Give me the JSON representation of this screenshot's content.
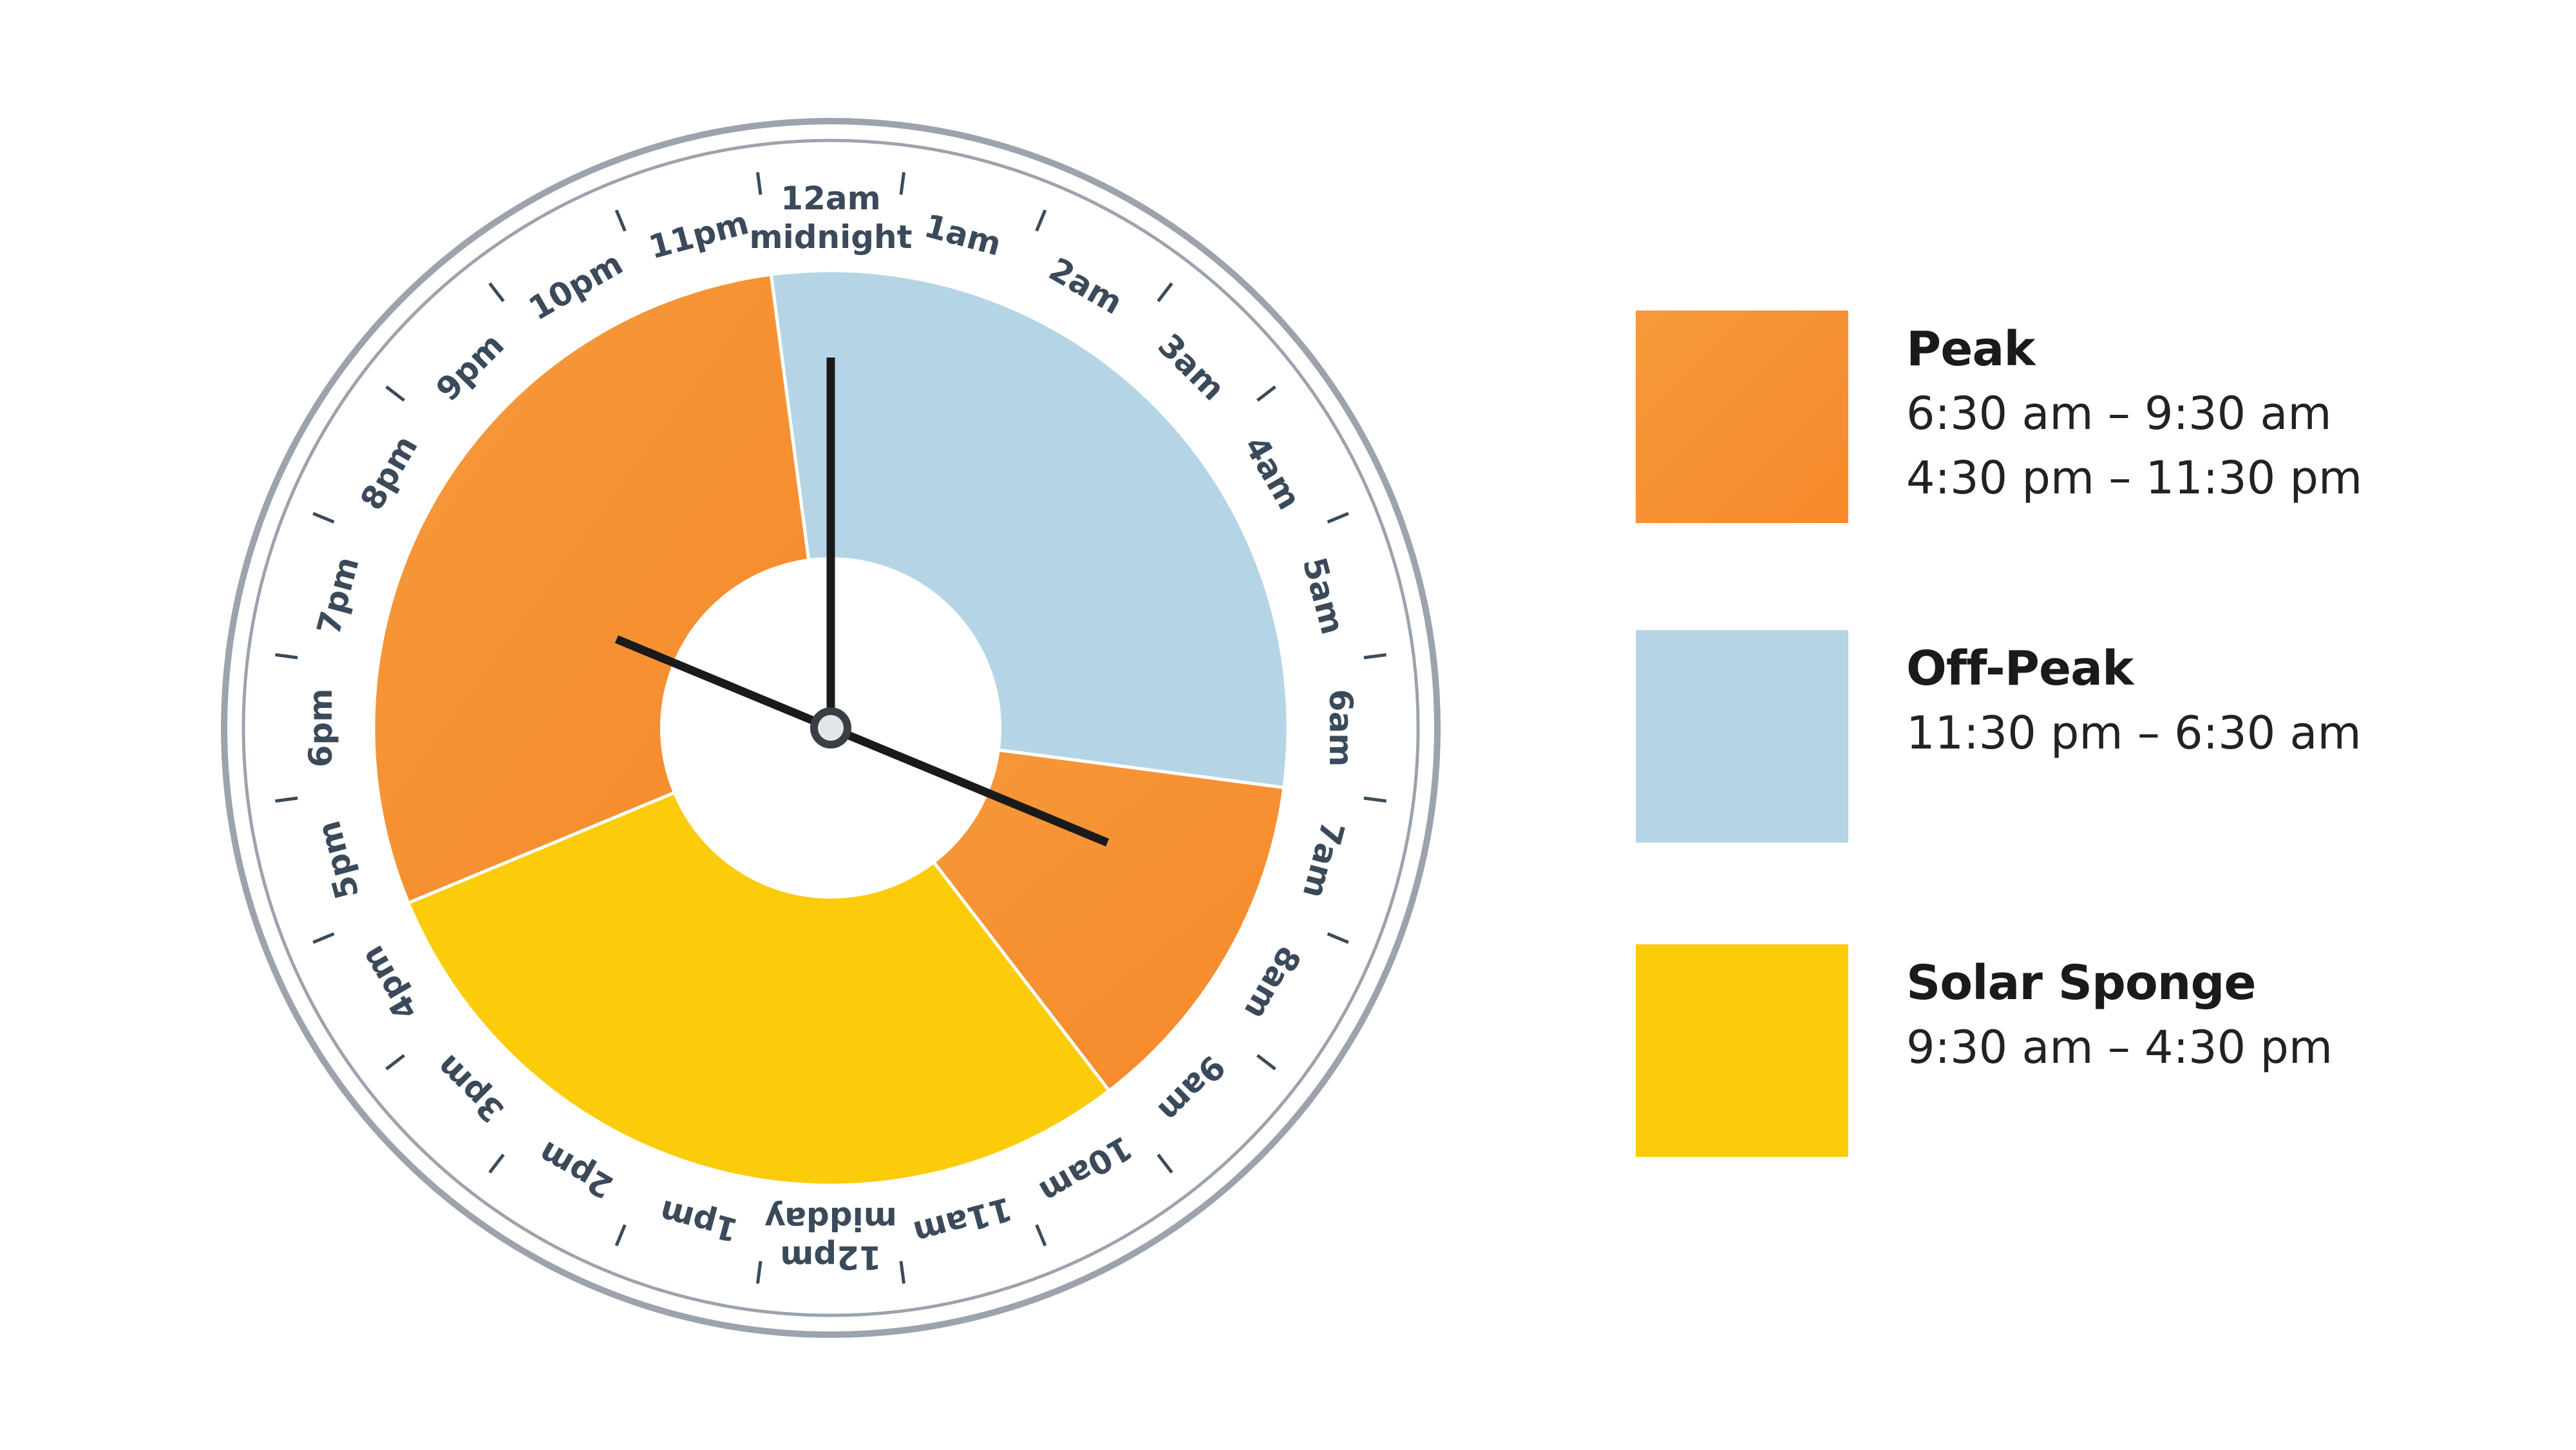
{
  "colors": {
    "peak": "#F7892A",
    "peak_light": "#F59A3C",
    "off_peak": "#B5D5E6",
    "solar_sponge": "#FCCB0A",
    "rim": "#9CA3AD",
    "label": "#3b4a5a",
    "hand": "#1a1a1a"
  },
  "clock": {
    "hour_labels": [
      [
        "12am",
        "midnight"
      ],
      [
        "1am"
      ],
      [
        "2am"
      ],
      [
        "3am"
      ],
      [
        "4am"
      ],
      [
        "5am"
      ],
      [
        "6am"
      ],
      [
        "7am"
      ],
      [
        "8am"
      ],
      [
        "9am"
      ],
      [
        "10am"
      ],
      [
        "11am"
      ],
      [
        "12pm",
        "midday"
      ],
      [
        "1pm"
      ],
      [
        "2pm"
      ],
      [
        "3pm"
      ],
      [
        "4pm"
      ],
      [
        "5pm"
      ],
      [
        "6pm"
      ],
      [
        "7pm"
      ],
      [
        "8pm"
      ],
      [
        "9pm"
      ],
      [
        "10pm"
      ],
      [
        "11pm"
      ]
    ],
    "segments": [
      {
        "tariff": "off_peak",
        "start_hour": 23.5,
        "end_hour": 30.5
      },
      {
        "tariff": "peak",
        "start_hour": 6.5,
        "end_hour": 9.5
      },
      {
        "tariff": "solar_sponge",
        "start_hour": 9.5,
        "end_hour": 16.5
      },
      {
        "tariff": "peak",
        "start_hour": 16.5,
        "end_hour": 23.5
      }
    ],
    "hands_point_to_hours": [
      0,
      7.5,
      19.5
    ]
  },
  "legend": {
    "peak": {
      "title": "Peak",
      "lines": [
        "6:30 am – 9:30 am",
        "4:30 pm – 11:30 pm"
      ]
    },
    "off_peak": {
      "title": "Off-Peak",
      "lines": [
        "11:30 pm – 6:30 am"
      ]
    },
    "solar_sponge": {
      "title": "Solar Sponge",
      "lines": [
        "9:30 am – 4:30 pm"
      ]
    }
  }
}
